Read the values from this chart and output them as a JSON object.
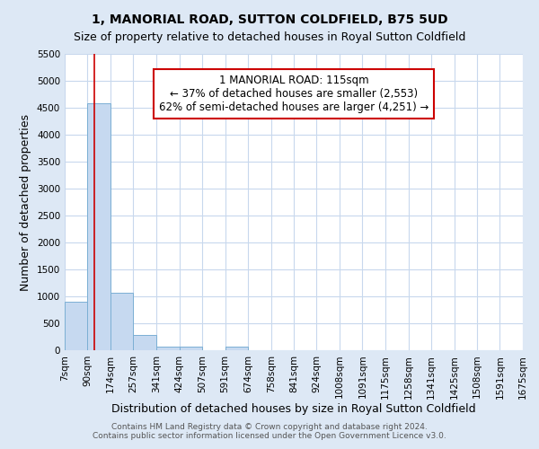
{
  "title": "1, MANORIAL ROAD, SUTTON COLDFIELD, B75 5UD",
  "subtitle": "Size of property relative to detached houses in Royal Sutton Coldfield",
  "xlabel": "Distribution of detached houses by size in Royal Sutton Coldfield",
  "ylabel": "Number of detached properties",
  "footer1": "Contains HM Land Registry data © Crown copyright and database right 2024.",
  "footer2": "Contains public sector information licensed under the Open Government Licence v3.0.",
  "bin_edges": [
    7,
    90,
    174,
    257,
    341,
    424,
    507,
    591,
    674,
    758,
    841,
    924,
    1008,
    1091,
    1175,
    1258,
    1341,
    1425,
    1508,
    1591,
    1675
  ],
  "bar_heights": [
    900,
    4580,
    1060,
    290,
    75,
    65,
    0,
    65,
    0,
    0,
    0,
    0,
    0,
    0,
    0,
    0,
    0,
    0,
    0,
    0
  ],
  "bar_color": "#c6d9f0",
  "bar_edge_color": "#7bafd4",
  "vline_x": 115,
  "vline_color": "#cc0000",
  "annotation_text": "1 MANORIAL ROAD: 115sqm\n← 37% of detached houses are smaller (2,553)\n62% of semi-detached houses are larger (4,251) →",
  "annotation_box_color": "#ffffff",
  "annotation_box_edge": "#cc0000",
  "ylim": [
    0,
    5500
  ],
  "yticks": [
    0,
    500,
    1000,
    1500,
    2000,
    2500,
    3000,
    3500,
    4000,
    4500,
    5000,
    5500
  ],
  "figure_bg": "#dde8f5",
  "axes_bg": "#ffffff",
  "grid_color": "#c8d8ed",
  "title_fontsize": 10,
  "subtitle_fontsize": 9,
  "axis_label_fontsize": 9,
  "tick_fontsize": 7.5,
  "footer_fontsize": 6.5
}
